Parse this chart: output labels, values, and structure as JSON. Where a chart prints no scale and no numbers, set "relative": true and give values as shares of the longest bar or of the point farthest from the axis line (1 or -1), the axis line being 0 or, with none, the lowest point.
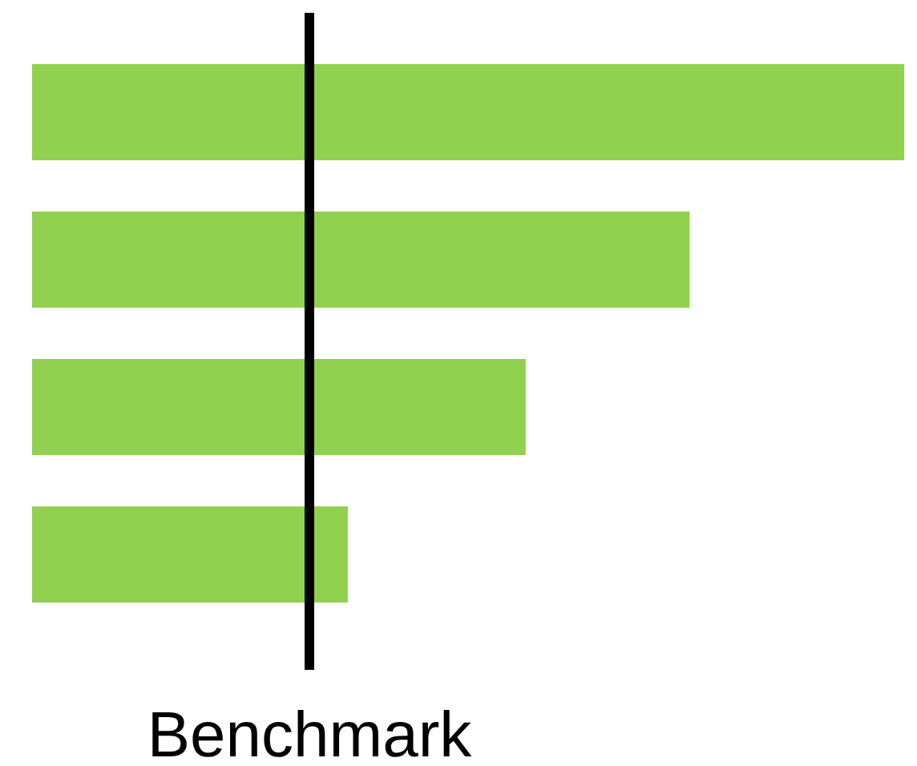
{
  "chart_data": {
    "type": "bar",
    "orientation": "horizontal",
    "relative": true,
    "categories": [
      null,
      null,
      null,
      null
    ],
    "values": [
      1,
      0.754,
      0.566,
      0.362
    ],
    "color": "#92d050",
    "ref_lines": [
      {
        "axis": "x",
        "value": 0.318,
        "label": "Benchmark",
        "color": "#000000"
      }
    ],
    "grid": false,
    "legend": false,
    "tick_labels": false
  }
}
